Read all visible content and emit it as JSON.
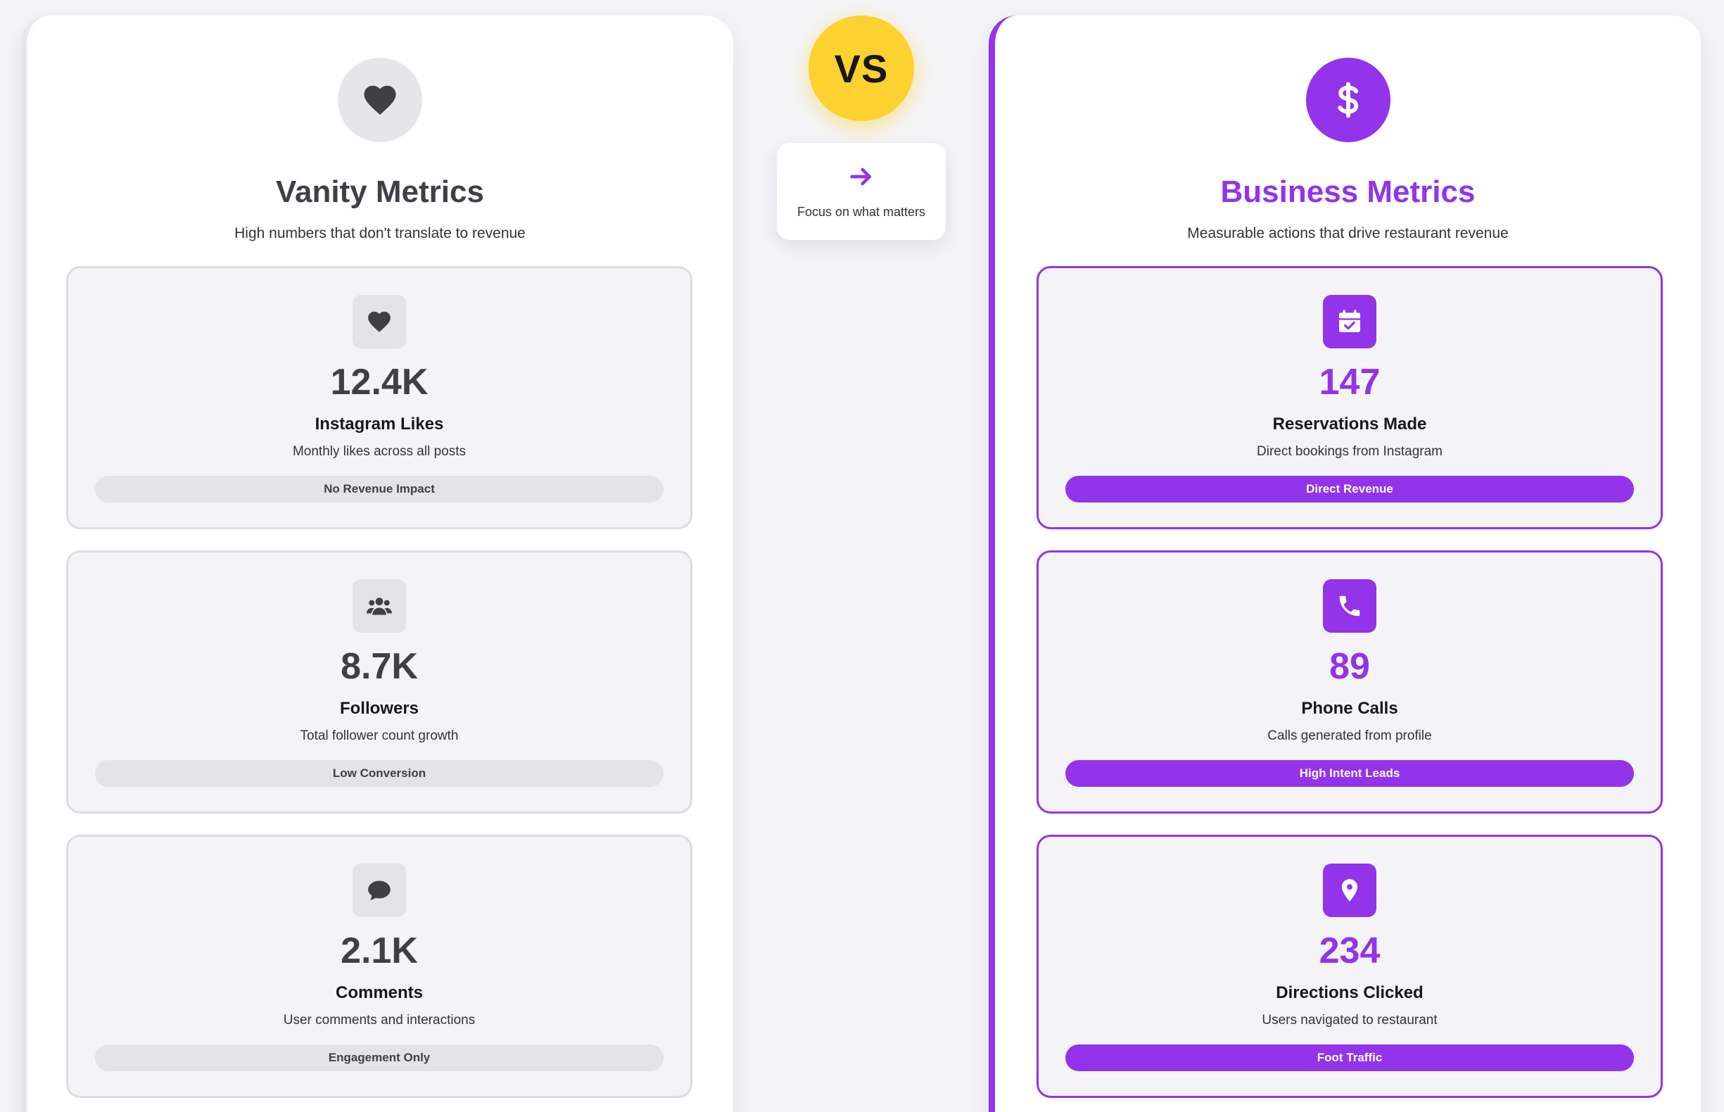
{
  "vs_badge": {
    "label": "VS"
  },
  "focus": {
    "text": "Focus on what matters",
    "icon": "arrow-right-icon"
  },
  "vanity": {
    "title": "Vanity Metrics",
    "subtitle": "High numbers that don't translate to revenue",
    "icon": "heart-icon",
    "color": "#3f3f46",
    "cards": [
      {
        "icon": "heart-icon",
        "value": "12.4K",
        "name": "Instagram Likes",
        "desc": "Monthly likes across all posts",
        "tag": "No Revenue Impact"
      },
      {
        "icon": "users-icon",
        "value": "8.7K",
        "name": "Followers",
        "desc": "Total follower count growth",
        "tag": "Low Conversion"
      },
      {
        "icon": "comment-icon",
        "value": "2.1K",
        "name": "Comments",
        "desc": "User comments and interactions",
        "tag": "Engagement Only"
      }
    ]
  },
  "business": {
    "title": "Business Metrics",
    "subtitle": "Measurable actions that drive restaurant revenue",
    "icon": "dollar-icon",
    "color": "#9333ea",
    "cards": [
      {
        "icon": "calendar-check-icon",
        "value": "147",
        "name": "Reservations Made",
        "desc": "Direct bookings from Instagram",
        "tag": "Direct Revenue"
      },
      {
        "icon": "phone-icon",
        "value": "89",
        "name": "Phone Calls",
        "desc": "Calls generated from profile",
        "tag": "High Intent Leads"
      },
      {
        "icon": "map-pin-icon",
        "value": "234",
        "name": "Directions Clicked",
        "desc": "Users navigated to restaurant",
        "tag": "Foot Traffic"
      }
    ]
  },
  "colors": {
    "accent": "#9333ea",
    "vs": "#fcd130",
    "muted": "#3f3f46"
  }
}
